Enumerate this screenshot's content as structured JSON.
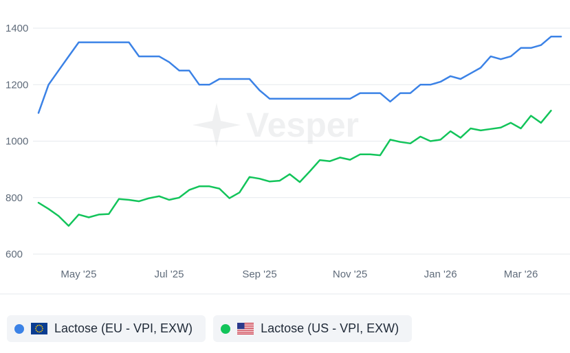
{
  "watermark": {
    "brand": "Vesper",
    "icon": "vesper-star-icon"
  },
  "chart_data": {
    "type": "line",
    "title": "",
    "xlabel": "",
    "ylabel": "",
    "ylim": [
      600,
      1400
    ],
    "yticks": [
      600,
      800,
      1000,
      1200,
      1400
    ],
    "grid": true,
    "legend_position": "bottom",
    "x_tick_labels": [
      {
        "label": "May '25",
        "index": 4
      },
      {
        "label": "Jul '25",
        "index": 13
      },
      {
        "label": "Sep '25",
        "index": 22
      },
      {
        "label": "Nov '25",
        "index": 31
      },
      {
        "label": "Jan '26",
        "index": 40
      },
      {
        "label": "Mar '26",
        "index": 48
      }
    ],
    "series": [
      {
        "name": "Lactose (EU - VPI, EXW)",
        "color": "#3b82e6",
        "flag": "eu-flag-icon",
        "values": [
          1100,
          1200,
          1250,
          1300,
          1350,
          1350,
          1350,
          1350,
          1350,
          1350,
          1300,
          1300,
          1300,
          1280,
          1250,
          1250,
          1200,
          1200,
          1220,
          1220,
          1220,
          1220,
          1180,
          1150,
          1150,
          1150,
          1150,
          1150,
          1150,
          1150,
          1150,
          1150,
          1170,
          1170,
          1170,
          1140,
          1170,
          1170,
          1200,
          1200,
          1210,
          1230,
          1220,
          1240,
          1260,
          1300,
          1290,
          1300,
          1330,
          1330,
          1340,
          1370,
          1370
        ]
      },
      {
        "name": "Lactose (US - VPI, EXW)",
        "color": "#12c45a",
        "flag": "us-flag-icon",
        "values": [
          782,
          760,
          735,
          700,
          740,
          730,
          740,
          742,
          795,
          792,
          787,
          798,
          805,
          792,
          800,
          827,
          840,
          840,
          832,
          798,
          818,
          873,
          867,
          857,
          860,
          883,
          855,
          893,
          933,
          929,
          942,
          934,
          953,
          953,
          950,
          1005,
          997,
          992,
          1016,
          1000,
          1005,
          1035,
          1012,
          1045,
          1038,
          1043,
          1048,
          1065,
          1045,
          1090,
          1065,
          1108
        ]
      }
    ]
  }
}
